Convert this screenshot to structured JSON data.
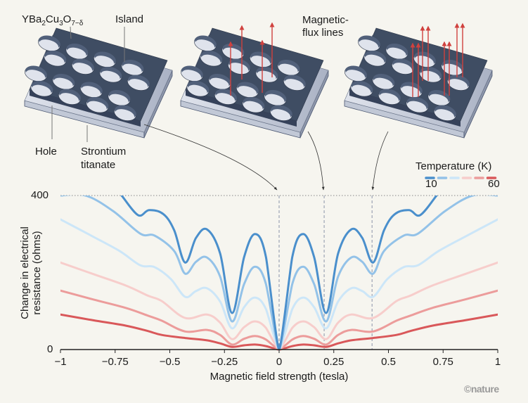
{
  "illustration": {
    "formula": {
      "base": "YBa",
      "s1": "2",
      "mid1": "Cu",
      "s2": "3",
      "mid2": "O",
      "s3": "7−δ"
    },
    "island_label": "Island",
    "hole_label": "Hole",
    "substrate_label_line1": "Strontium",
    "substrate_label_line2": "titanate",
    "flux_label_line1": "Magnetic-",
    "flux_label_line2": "flux lines",
    "slab_color": "#3f4d63",
    "substrate_color": "#c9cfdc",
    "flux_color": "#d0413e"
  },
  "legend": {
    "title": "Temperature (K)",
    "min_label": "10",
    "max_label": "60",
    "colors": [
      "#4a8fcc",
      "#93c2e8",
      "#cce6f8",
      "#f7cdcb",
      "#ec9c9b",
      "#d9585a"
    ]
  },
  "credit": "©nature",
  "chart_data": {
    "type": "line",
    "title": "",
    "xlabel": "Magnetic field strength (tesla)",
    "ylabel_line1": "Change in electrical",
    "ylabel_line2": "resistance (ohms)",
    "xlim": [
      -1,
      1
    ],
    "ylim": [
      0,
      400
    ],
    "xticks": [
      -1,
      -0.75,
      -0.5,
      -0.25,
      0,
      0.25,
      0.5,
      0.75,
      1
    ],
    "xtick_labels": [
      "−1",
      "−0.75",
      "−0.5",
      "−0.25",
      "0",
      "0.25",
      "0.5",
      "0.75",
      "1"
    ],
    "ytick_labels": [
      "0",
      "400"
    ],
    "reference_lines_x": [
      0,
      0.206,
      0.425
    ],
    "legend_position": "top-right",
    "series": [
      {
        "name": "10 K",
        "color": "#4a8fcc",
        "x": [
          0.72,
          0.645,
          0.595,
          0.53,
          0.48,
          0.43,
          0.38,
          0.33,
          0.27,
          0.215,
          0.16,
          0.11,
          0.06,
          0
        ],
        "y": [
          400,
          349,
          362,
          352,
          310,
          226,
          290,
          312,
          250,
          95,
          240,
          300,
          240,
          0
        ]
      },
      {
        "name": "20 K",
        "color": "#93c2e8",
        "x": [
          1,
          0.885,
          0.76,
          0.635,
          0.57,
          0.48,
          0.43,
          0.38,
          0.33,
          0.27,
          0.215,
          0.16,
          0.11,
          0.06,
          0
        ],
        "y": [
          400,
          400,
          360,
          301,
          296,
          256,
          197,
          228,
          239,
          190,
          73,
          170,
          215,
          170,
          0
        ]
      },
      {
        "name": "30 K",
        "color": "#cce6f8",
        "x": [
          1,
          0.86,
          0.73,
          0.635,
          0.57,
          0.495,
          0.43,
          0.38,
          0.33,
          0.27,
          0.215,
          0.16,
          0.11,
          0.06,
          0
        ],
        "y": [
          338,
          296,
          256,
          219,
          214,
          183,
          137,
          152,
          159,
          125,
          55,
          110,
          135,
          105,
          0
        ]
      },
      {
        "name": "40 K",
        "color": "#f7cdcb",
        "x": [
          1,
          0.85,
          0.7,
          0.6,
          0.537,
          0.43,
          0.33,
          0.27,
          0.215,
          0.16,
          0.11,
          0.06,
          0
        ],
        "y": [
          226,
          196,
          166,
          140,
          126,
          82,
          91,
          70,
          27,
          58,
          73,
          56,
          0
        ]
      },
      {
        "name": "50 K",
        "color": "#ec9c9b",
        "x": [
          1,
          0.85,
          0.7,
          0.6,
          0.537,
          0.43,
          0.33,
          0.27,
          0.215,
          0.16,
          0.11,
          0.06,
          0
        ],
        "y": [
          153,
          130,
          108,
          88,
          75,
          47,
          51,
          38,
          13,
          28,
          35,
          26,
          0
        ]
      },
      {
        "name": "60 K",
        "color": "#d9585a",
        "x": [
          1,
          0.85,
          0.7,
          0.6,
          0.537,
          0.43,
          0.33,
          0.27,
          0.215,
          0.16,
          0.11,
          0.06,
          0
        ],
        "y": [
          91,
          76,
          62,
          48,
          38,
          30,
          24,
          16,
          7,
          11,
          13,
          9,
          0
        ]
      }
    ]
  }
}
